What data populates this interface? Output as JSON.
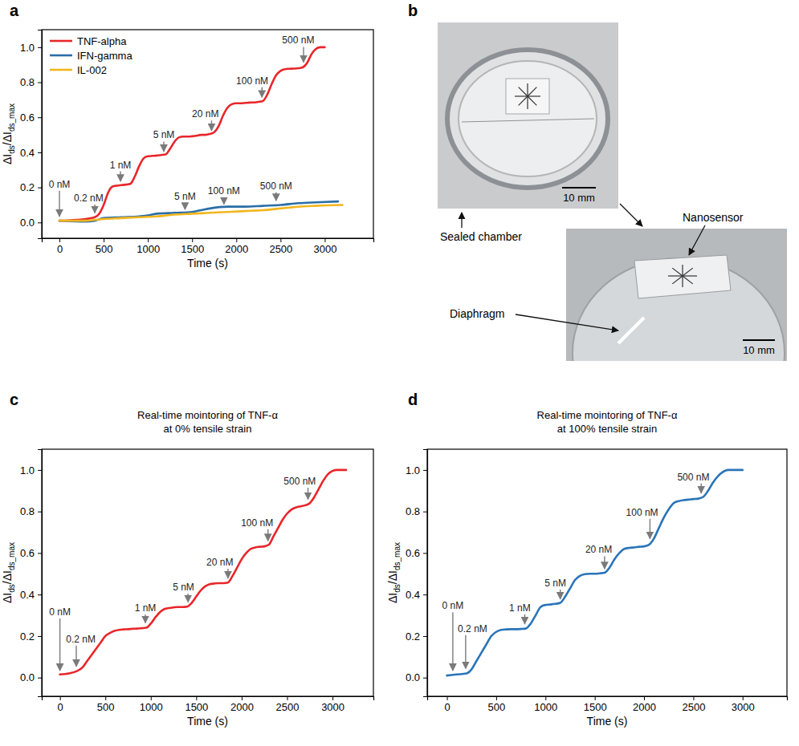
{
  "chart_data": [
    {
      "panel_label": "a",
      "type": "line",
      "x_label": "Time (s)",
      "y_label": [
        "ΔI",
        "ds",
        "/ΔI",
        "ds_max"
      ],
      "xlim": [
        -200,
        3550
      ],
      "xticks": [
        0,
        500,
        1000,
        1500,
        2000,
        2500,
        3000
      ],
      "ylim": [
        -0.09,
        1.1
      ],
      "yticks": [
        {
          "value": 0,
          "label": "0.0"
        },
        {
          "value": 0.2,
          "label": "0.2"
        },
        {
          "value": 0.4,
          "label": "0.4"
        },
        {
          "value": 0.6,
          "label": "0.6"
        },
        {
          "value": 0.8,
          "label": "0.8"
        },
        {
          "value": 1,
          "label": "1.0"
        }
      ],
      "legend": "upper left",
      "series": [
        {
          "name": "TNF-alpha",
          "color": "#e8262a",
          "x": [
            0,
            100,
            200,
            300,
            400,
            450,
            500,
            550,
            600,
            650,
            700,
            750,
            800,
            850,
            900,
            950,
            1000,
            1050,
            1100,
            1150,
            1200,
            1250,
            1300,
            1350,
            1400,
            1450,
            1500,
            1550,
            1600,
            1650,
            1700,
            1750,
            1800,
            1850,
            1900,
            1950,
            2000,
            2050,
            2100,
            2150,
            2200,
            2250,
            2300,
            2350,
            2400,
            2450,
            2500,
            2550,
            2600,
            2650,
            2700,
            2750,
            2800,
            2850,
            2900,
            2950,
            3000
          ],
          "values": [
            0.01,
            0.012,
            0.015,
            0.02,
            0.03,
            0.05,
            0.1,
            0.17,
            0.205,
            0.21,
            0.213,
            0.216,
            0.22,
            0.26,
            0.32,
            0.365,
            0.378,
            0.38,
            0.382,
            0.385,
            0.388,
            0.42,
            0.46,
            0.485,
            0.49,
            0.49,
            0.492,
            0.495,
            0.5,
            0.5,
            0.505,
            0.515,
            0.55,
            0.61,
            0.655,
            0.675,
            0.68,
            0.68,
            0.682,
            0.684,
            0.685,
            0.688,
            0.693,
            0.73,
            0.79,
            0.84,
            0.865,
            0.875,
            0.877,
            0.878,
            0.88,
            0.885,
            0.91,
            0.96,
            0.99,
            1.0,
            1.0
          ]
        },
        {
          "name": "IFN-gamma",
          "color": "#2a6ea6",
          "x": [
            0,
            300,
            400,
            500,
            700,
            900,
            1000,
            1100,
            1300,
            1500,
            1600,
            1700,
            1900,
            2100,
            2300,
            2500,
            2700,
            2900,
            3150
          ],
          "values": [
            0.01,
            0.005,
            0.01,
            0.025,
            0.03,
            0.035,
            0.04,
            0.05,
            0.055,
            0.06,
            0.07,
            0.08,
            0.09,
            0.09,
            0.095,
            0.1,
            0.11,
            0.115,
            0.12
          ]
        },
        {
          "name": "IL-002",
          "color": "#f2b61d",
          "x": [
            0,
            300,
            400,
            500,
            700,
            900,
            1100,
            1300,
            1500,
            1700,
            1900,
            2100,
            2300,
            2500,
            2600,
            2700,
            2900,
            3200
          ],
          "values": [
            0.01,
            0.01,
            0.015,
            0.02,
            0.025,
            0.03,
            0.035,
            0.045,
            0.05,
            0.055,
            0.06,
            0.065,
            0.07,
            0.08,
            0.085,
            0.09,
            0.095,
            0.1
          ]
        }
      ],
      "annotations": [
        {
          "text": "0 nM",
          "x": 0,
          "y": 0.03,
          "text_y": 0.2
        },
        {
          "text": "0.2 nM",
          "x": 400,
          "y": 0.05,
          "text_x": 330,
          "text_y": 0.12
        },
        {
          "text": "1 nM",
          "x": 690,
          "y": 0.23,
          "text_y": 0.31
        },
        {
          "text": "5 nM",
          "x": 1180,
          "y": 0.4,
          "text_y": 0.48
        },
        {
          "text": "20 nM",
          "x": 1720,
          "y": 0.52,
          "text_x": 1650,
          "text_y": 0.6
        },
        {
          "text": "100 nM",
          "x": 2290,
          "y": 0.71,
          "text_x": 2180,
          "text_y": 0.79
        },
        {
          "text": "500 nM",
          "x": 2760,
          "y": 0.91,
          "text_x": 2700,
          "text_y": 1.02
        },
        {
          "text": "5 nM",
          "x": 1420,
          "y": 0.07,
          "text_y": 0.13
        },
        {
          "text": "100 nM",
          "x": 1860,
          "y": 0.1,
          "text_y": 0.16
        },
        {
          "text": "500 nM",
          "x": 2450,
          "y": 0.12,
          "text_y": 0.19
        }
      ]
    },
    {
      "panel_label": "c",
      "type": "line",
      "title": [
        "Real-time mointoring of TNF-α",
        "at 0% tensile strain"
      ],
      "x_label": "Time (s)",
      "y_label": [
        "ΔI",
        "ds",
        "/ΔI",
        "ds_max"
      ],
      "xlim": [
        -200,
        3450
      ],
      "xticks": [
        0,
        500,
        1000,
        1500,
        2000,
        2500,
        3000
      ],
      "ylim": [
        -0.09,
        1.1
      ],
      "yticks": [
        {
          "value": 0,
          "label": "0.0"
        },
        {
          "value": 0.2,
          "label": "0.2"
        },
        {
          "value": 0.4,
          "label": "0.4"
        },
        {
          "value": 0.6,
          "label": "0.6"
        },
        {
          "value": 0.8,
          "label": "0.8"
        },
        {
          "value": 1,
          "label": "1.0"
        }
      ],
      "series": [
        {
          "color": "#e8262a",
          "x": [
            0,
            100,
            180,
            250,
            300,
            350,
            400,
            450,
            500,
            550,
            600,
            650,
            700,
            750,
            800,
            850,
            900,
            950,
            1000,
            1050,
            1100,
            1150,
            1200,
            1250,
            1300,
            1350,
            1400,
            1450,
            1500,
            1550,
            1600,
            1650,
            1700,
            1750,
            1800,
            1850,
            1900,
            1950,
            2000,
            2050,
            2100,
            2150,
            2200,
            2250,
            2300,
            2350,
            2400,
            2450,
            2500,
            2550,
            2600,
            2650,
            2700,
            2750,
            2800,
            2850,
            2900,
            2950,
            3000,
            3050,
            3150
          ],
          "values": [
            0.015,
            0.02,
            0.03,
            0.05,
            0.08,
            0.11,
            0.14,
            0.17,
            0.2,
            0.215,
            0.225,
            0.23,
            0.232,
            0.233,
            0.235,
            0.236,
            0.238,
            0.24,
            0.26,
            0.29,
            0.315,
            0.33,
            0.335,
            0.338,
            0.34,
            0.34,
            0.342,
            0.36,
            0.39,
            0.42,
            0.44,
            0.45,
            0.453,
            0.455,
            0.455,
            0.458,
            0.49,
            0.53,
            0.57,
            0.6,
            0.62,
            0.627,
            0.63,
            0.632,
            0.64,
            0.68,
            0.72,
            0.76,
            0.79,
            0.81,
            0.82,
            0.825,
            0.83,
            0.84,
            0.87,
            0.91,
            0.95,
            0.98,
            0.995,
            1.0,
            1.0
          ]
        }
      ],
      "annotations": [
        {
          "text": "0 nM",
          "x": 0,
          "y": 0.03,
          "text_y": 0.3
        },
        {
          "text": "0.2 nM",
          "x": 180,
          "y": 0.05,
          "text_x": 230,
          "text_y": 0.17
        },
        {
          "text": "1 nM",
          "x": 940,
          "y": 0.26,
          "text_y": 0.32
        },
        {
          "text": "5 nM",
          "x": 1410,
          "y": 0.36,
          "text_x": 1360,
          "text_y": 0.42
        },
        {
          "text": "20 nM",
          "x": 1850,
          "y": 0.475,
          "text_x": 1760,
          "text_y": 0.54
        },
        {
          "text": "100 nM",
          "x": 2290,
          "y": 0.655,
          "text_x": 2170,
          "text_y": 0.73
        },
        {
          "text": "500 nM",
          "x": 2730,
          "y": 0.855,
          "text_x": 2640,
          "text_y": 0.93
        }
      ]
    },
    {
      "panel_label": "d",
      "type": "line",
      "title": [
        "Real-time mointoring of TNF-α",
        "at 100% tensile strain"
      ],
      "x_label": "Time (s)",
      "y_label": [
        "ΔI",
        "ds",
        "/ΔI",
        "ds_max"
      ],
      "xlim": [
        -200,
        3450
      ],
      "xticks": [
        0,
        500,
        1000,
        1500,
        2000,
        2500,
        3000
      ],
      "ylim": [
        -0.09,
        1.1
      ],
      "yticks": [
        {
          "value": 0,
          "label": "0.0"
        },
        {
          "value": 0.2,
          "label": "0.2"
        },
        {
          "value": 0.4,
          "label": "0.4"
        },
        {
          "value": 0.6,
          "label": "0.6"
        },
        {
          "value": 0.8,
          "label": "0.8"
        },
        {
          "value": 1,
          "label": "1.0"
        }
      ],
      "series": [
        {
          "color": "#2a74b8",
          "x": [
            0,
            100,
            200,
            250,
            300,
            350,
            400,
            450,
            500,
            550,
            600,
            650,
            700,
            750,
            800,
            850,
            900,
            950,
            1000,
            1050,
            1100,
            1150,
            1200,
            1250,
            1300,
            1350,
            1400,
            1450,
            1500,
            1550,
            1600,
            1650,
            1700,
            1750,
            1800,
            1850,
            1900,
            1950,
            2000,
            2050,
            2100,
            2150,
            2200,
            2250,
            2300,
            2350,
            2400,
            2450,
            2500,
            2550,
            2600,
            2650,
            2700,
            2750,
            2800,
            2850,
            2900,
            3000
          ],
          "values": [
            0.01,
            0.015,
            0.02,
            0.04,
            0.08,
            0.12,
            0.16,
            0.2,
            0.22,
            0.23,
            0.232,
            0.233,
            0.233,
            0.234,
            0.236,
            0.26,
            0.3,
            0.34,
            0.35,
            0.352,
            0.355,
            0.36,
            0.39,
            0.43,
            0.47,
            0.49,
            0.498,
            0.5,
            0.5,
            0.502,
            0.505,
            0.53,
            0.57,
            0.6,
            0.62,
            0.625,
            0.627,
            0.63,
            0.632,
            0.64,
            0.67,
            0.72,
            0.77,
            0.81,
            0.84,
            0.85,
            0.855,
            0.857,
            0.86,
            0.862,
            0.87,
            0.9,
            0.94,
            0.97,
            0.99,
            1.0,
            1.0,
            1.0
          ]
        }
      ],
      "annotations": [
        {
          "text": "0 nM",
          "x": 60,
          "y": 0.03,
          "text_y": 0.33
        },
        {
          "text": "0.2 nM",
          "x": 190,
          "y": 0.04,
          "text_x": 260,
          "text_y": 0.22
        },
        {
          "text": "1 nM",
          "x": 790,
          "y": 0.255,
          "text_x": 740,
          "text_y": 0.32
        },
        {
          "text": "5 nM",
          "x": 1150,
          "y": 0.375,
          "text_x": 1100,
          "text_y": 0.44
        },
        {
          "text": "20 nM",
          "x": 1600,
          "y": 0.52,
          "text_x": 1540,
          "text_y": 0.6
        },
        {
          "text": "100 nM",
          "x": 2060,
          "y": 0.665,
          "text_x": 1980,
          "text_y": 0.78
        },
        {
          "text": "500 nM",
          "x": 2580,
          "y": 0.885,
          "text_x": 2500,
          "text_y": 0.95
        }
      ]
    }
  ],
  "photo": {
    "panel_label": "b",
    "labels": [
      "Sealed chamber",
      "Nanosensor",
      "Diaphragm"
    ],
    "scale_bars": [
      "10 mm",
      "10 mm"
    ]
  }
}
